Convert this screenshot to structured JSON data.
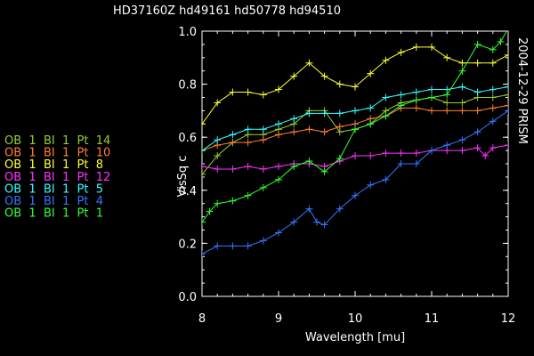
{
  "chart_data": {
    "type": "line",
    "title": "HD37160Z hd49161    hd50778    hd94510",
    "side_label": "2004-12-29 PRISM",
    "xlabel": "Wavelength [mu]",
    "ylabel": "VisSq c",
    "xlim": [
      8,
      12
    ],
    "ylim": [
      0,
      1.0
    ],
    "xticks": [
      8,
      9,
      10,
      11,
      12
    ],
    "yticks": [
      0.0,
      0.2,
      0.4,
      0.6,
      0.8,
      1.0
    ],
    "grid": false,
    "legend_position": "left",
    "series": [
      {
        "name": "OB  1  BI  1  Pt  14",
        "color": "#9acd32",
        "x": [
          8.0,
          8.2,
          8.4,
          8.6,
          8.8,
          9.0,
          9.2,
          9.4,
          9.6,
          9.8,
          10.0,
          10.2,
          10.4,
          10.6,
          10.8,
          11.0,
          11.2,
          11.4,
          11.6,
          11.8,
          12.0
        ],
        "y": [
          0.46,
          0.53,
          0.58,
          0.61,
          0.61,
          0.63,
          0.65,
          0.7,
          0.7,
          0.62,
          0.63,
          0.65,
          0.7,
          0.73,
          0.74,
          0.75,
          0.73,
          0.73,
          0.75,
          0.75,
          0.76
        ]
      },
      {
        "name": "OB  1  BI  1  Pt  10",
        "color": "#ff7f32",
        "x": [
          8.0,
          8.2,
          8.4,
          8.6,
          8.8,
          9.0,
          9.2,
          9.4,
          9.6,
          9.8,
          10.0,
          10.2,
          10.4,
          10.6,
          10.8,
          11.0,
          11.2,
          11.4,
          11.6,
          11.8,
          12.0
        ],
        "y": [
          0.55,
          0.57,
          0.58,
          0.58,
          0.59,
          0.61,
          0.62,
          0.63,
          0.62,
          0.64,
          0.65,
          0.67,
          0.68,
          0.71,
          0.71,
          0.7,
          0.7,
          0.7,
          0.7,
          0.71,
          0.72
        ]
      },
      {
        "name": "OB  1  BI  1  Pt  8",
        "color": "#ffff33",
        "x": [
          8.0,
          8.2,
          8.4,
          8.6,
          8.8,
          9.0,
          9.2,
          9.4,
          9.6,
          9.8,
          10.0,
          10.2,
          10.4,
          10.6,
          10.8,
          11.0,
          11.2,
          11.4,
          11.6,
          11.8,
          12.0
        ],
        "y": [
          0.65,
          0.73,
          0.77,
          0.77,
          0.76,
          0.78,
          0.83,
          0.88,
          0.83,
          0.8,
          0.79,
          0.84,
          0.89,
          0.92,
          0.94,
          0.94,
          0.9,
          0.88,
          0.88,
          0.88,
          0.91
        ]
      },
      {
        "name": "OB  1  BI  1  Pt  12",
        "color": "#ff33ff",
        "x": [
          8.0,
          8.2,
          8.4,
          8.6,
          8.8,
          9.0,
          9.2,
          9.4,
          9.6,
          9.8,
          10.0,
          10.2,
          10.4,
          10.6,
          10.8,
          11.0,
          11.2,
          11.4,
          11.6,
          11.7,
          11.8,
          12.0
        ],
        "y": [
          0.49,
          0.48,
          0.48,
          0.49,
          0.48,
          0.49,
          0.5,
          0.5,
          0.49,
          0.51,
          0.53,
          0.53,
          0.54,
          0.54,
          0.54,
          0.55,
          0.55,
          0.55,
          0.56,
          0.53,
          0.56,
          0.57
        ]
      },
      {
        "name": "OB  1  BI  1  Pt  5",
        "color": "#33ffff",
        "x": [
          8.0,
          8.2,
          8.4,
          8.6,
          8.8,
          9.0,
          9.2,
          9.4,
          9.6,
          9.8,
          10.0,
          10.2,
          10.4,
          10.6,
          10.8,
          11.0,
          11.2,
          11.4,
          11.6,
          11.8,
          12.0
        ],
        "y": [
          0.55,
          0.59,
          0.61,
          0.63,
          0.63,
          0.65,
          0.67,
          0.69,
          0.69,
          0.69,
          0.7,
          0.71,
          0.75,
          0.76,
          0.77,
          0.78,
          0.78,
          0.79,
          0.77,
          0.78,
          0.79
        ]
      },
      {
        "name": "OB  1  BI  1  Pt  4",
        "color": "#3377ff",
        "x": [
          8.0,
          8.2,
          8.4,
          8.6,
          8.8,
          9.0,
          9.2,
          9.4,
          9.5,
          9.6,
          9.8,
          10.0,
          10.2,
          10.4,
          10.6,
          10.8,
          11.0,
          11.2,
          11.4,
          11.6,
          11.8,
          12.0
        ],
        "y": [
          0.16,
          0.19,
          0.19,
          0.19,
          0.21,
          0.24,
          0.28,
          0.33,
          0.28,
          0.27,
          0.33,
          0.38,
          0.42,
          0.44,
          0.5,
          0.5,
          0.55,
          0.57,
          0.59,
          0.62,
          0.66,
          0.7
        ]
      },
      {
        "name": "OB  1  BI  1  Pt  1",
        "color": "#33ff33",
        "x": [
          8.0,
          8.1,
          8.2,
          8.4,
          8.6,
          8.8,
          9.0,
          9.2,
          9.4,
          9.6,
          9.8,
          10.0,
          10.2,
          10.4,
          10.6,
          10.8,
          11.0,
          11.2,
          11.4,
          11.6,
          11.8,
          11.9,
          12.0
        ],
        "y": [
          0.28,
          0.32,
          0.35,
          0.36,
          0.38,
          0.41,
          0.44,
          0.49,
          0.51,
          0.47,
          0.52,
          0.63,
          0.65,
          0.68,
          0.72,
          0.74,
          0.75,
          0.76,
          0.85,
          0.95,
          0.93,
          0.96,
          1.01
        ]
      }
    ]
  }
}
